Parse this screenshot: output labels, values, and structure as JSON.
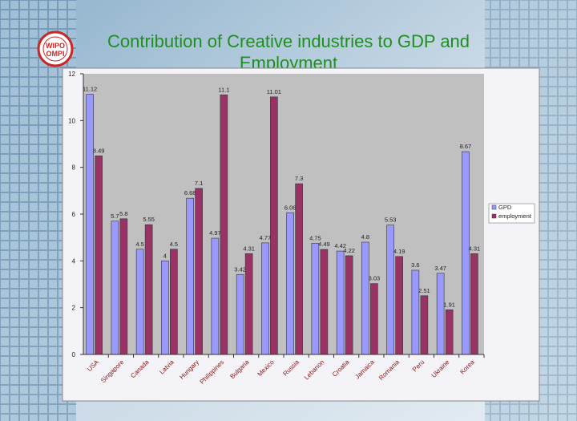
{
  "slide": {
    "title": "Contribution of Creative industries to GDP and Employment",
    "logo_text": "WIPO OMPI"
  },
  "chart_data": {
    "type": "bar",
    "title": "Contribution of Creative industries to GDP and Employment",
    "xlabel": "",
    "ylabel": "",
    "ylim": [
      0,
      12
    ],
    "yticks": [
      0,
      2,
      4,
      6,
      8,
      10,
      12
    ],
    "grid": false,
    "legend_position": "right",
    "categories": [
      "USA",
      "Singapore",
      "Canada",
      "Latvia",
      "Hungary",
      "Philippines",
      "Bulgaria",
      "Mexico",
      "Russia",
      "Lebanon",
      "Croatia",
      "Jamaica",
      "Romania",
      "Peru",
      "Ukraine",
      "Korea"
    ],
    "series": [
      {
        "name": "GPD",
        "color": "#9999ff",
        "values": [
          11.12,
          5.7,
          4.5,
          4,
          6.68,
          4.97,
          3.42,
          4.77,
          6.06,
          4.75,
          4.42,
          4.8,
          5.53,
          3.6,
          3.47,
          8.67
        ],
        "labels": [
          "11.12",
          "5.7",
          "4.5",
          "4",
          "6.68",
          "4.97",
          "3.42",
          "4.77",
          "6.06",
          "4.75",
          "4.42",
          "4.8",
          "5.53",
          "3.6",
          "3.47",
          "8.67"
        ]
      },
      {
        "name": "employment",
        "color": "#993366",
        "values": [
          8.49,
          5.8,
          5.55,
          4.5,
          7.1,
          11.1,
          4.31,
          11.01,
          7.3,
          4.49,
          4.22,
          3.03,
          4.19,
          2.51,
          1.91,
          4.31
        ],
        "labels": [
          "8.49",
          "5.8",
          "5.55",
          "4.5",
          "7.1",
          "11.1",
          "4.31",
          "11.01",
          "7.3",
          "4.49",
          "4.22",
          "3.03",
          "4.19",
          "2.51",
          "1.91",
          "4.31"
        ]
      }
    ]
  },
  "colors": {
    "title": "#1f8f1f",
    "plot_bg": "#c0c0c0",
    "frame_bg": "#f4f4f8",
    "gdp": "#9999ff",
    "employment": "#993366",
    "category_text": "#8a1010"
  }
}
